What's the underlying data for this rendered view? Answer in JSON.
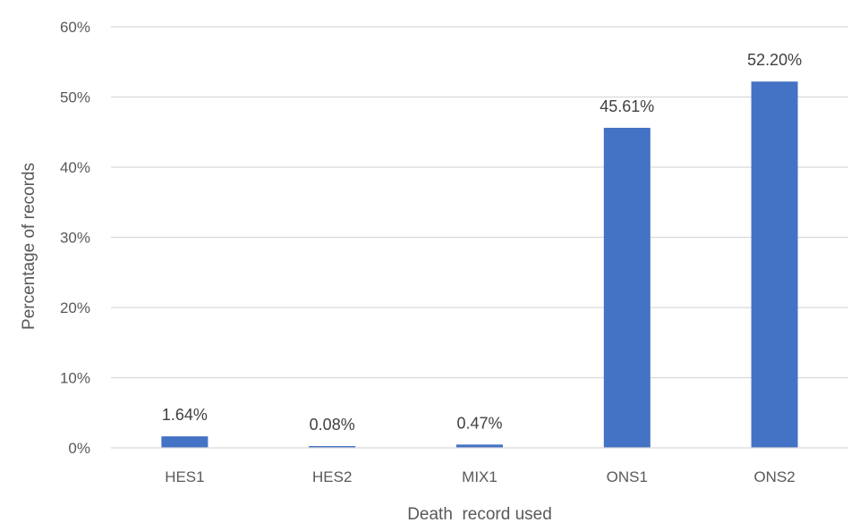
{
  "chart_data": {
    "type": "bar",
    "title": "",
    "xlabel": "Death  record used",
    "ylabel": "Percentage of records",
    "categories": [
      "HES1",
      "HES2",
      "MIX1",
      "ONS1",
      "ONS2"
    ],
    "values": [
      1.64,
      0.08,
      0.47,
      45.61,
      52.2
    ],
    "data_labels": [
      "1.64%",
      "0.08%",
      "0.47%",
      "45.61%",
      "52.20%"
    ],
    "ylim": [
      0,
      60
    ],
    "yticks": [
      0,
      10,
      20,
      30,
      40,
      50,
      60
    ],
    "ytick_labels": [
      "0%",
      "10%",
      "20%",
      "30%",
      "40%",
      "50%",
      "60%"
    ],
    "grid": true,
    "legend": "none",
    "bar_color": "#4472C4"
  }
}
